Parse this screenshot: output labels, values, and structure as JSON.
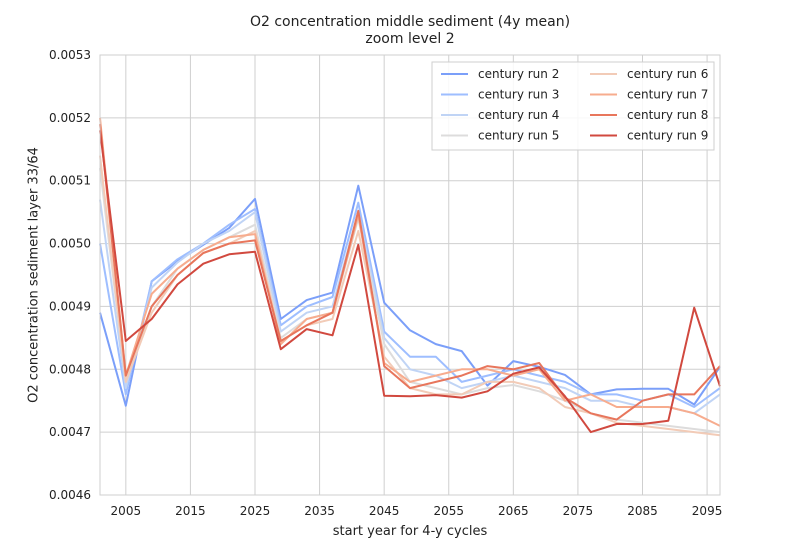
{
  "chart_data": {
    "type": "line",
    "title": "O2 concentration middle sediment (4y mean)",
    "subtitle": "zoom level 2",
    "xlabel": "start year for 4-y cycles",
    "ylabel": "O2 concentration sediment layer 33/64",
    "xlim": [
      2001,
      2097
    ],
    "ylim": [
      0.0046,
      0.0053
    ],
    "xticks": [
      2005,
      2015,
      2025,
      2035,
      2045,
      2055,
      2065,
      2075,
      2085,
      2095
    ],
    "yticks": [
      "0.0046",
      "0.0047",
      "0.0048",
      "0.0049",
      "0.0050",
      "0.0051",
      "0.0052",
      "0.0053"
    ],
    "grid": true,
    "legend_position": "top-right",
    "x": [
      2001,
      2005,
      2009,
      2013,
      2017,
      2021,
      2025,
      2029,
      2033,
      2037,
      2041,
      2045,
      2049,
      2053,
      2057,
      2061,
      2065,
      2069,
      2073,
      2077,
      2081,
      2085,
      2089,
      2093,
      2097
    ],
    "series": [
      {
        "name": "century run 2",
        "color": "#7b9ff9",
        "values": [
          0.00489,
          0.004742,
          0.00494,
          0.004972,
          0.004998,
          0.005025,
          0.005071,
          0.00488,
          0.00491,
          0.004922,
          0.005092,
          0.004906,
          0.004862,
          0.00484,
          0.004829,
          0.004774,
          0.004813,
          0.004804,
          0.004791,
          0.00476,
          0.004768,
          0.004769,
          0.004769,
          0.004744,
          0.004804
        ]
      },
      {
        "name": "century run 3",
        "color": "#9ebeff",
        "values": [
          0.005,
          0.00476,
          0.00494,
          0.004975,
          0.005,
          0.00503,
          0.005055,
          0.00487,
          0.0049,
          0.004915,
          0.005065,
          0.00486,
          0.00482,
          0.00482,
          0.00478,
          0.00479,
          0.0048,
          0.00479,
          0.00478,
          0.00476,
          0.00476,
          0.00475,
          0.00476,
          0.00474,
          0.00477
        ]
      },
      {
        "name": "century run 4",
        "color": "#c0d4f5",
        "values": [
          0.00507,
          0.00477,
          0.00493,
          0.00497,
          0.005,
          0.00502,
          0.00505,
          0.00486,
          0.00489,
          0.0049,
          0.00505,
          0.00485,
          0.0048,
          0.00479,
          0.00477,
          0.00478,
          0.00479,
          0.00478,
          0.00477,
          0.00475,
          0.00475,
          0.00474,
          0.00474,
          0.00473,
          0.00476
        ]
      },
      {
        "name": "century run 5",
        "color": "#dddcdc",
        "values": [
          0.00512,
          0.00478,
          0.0049,
          0.00496,
          0.00499,
          0.00501,
          0.00503,
          0.00485,
          0.00488,
          0.00489,
          0.00504,
          0.00484,
          0.00478,
          0.00477,
          0.00476,
          0.00477,
          0.004775,
          0.004765,
          0.00475,
          0.00473,
          0.00472,
          0.004715,
          0.00471,
          0.004705,
          0.0047
        ]
      },
      {
        "name": "century run 6",
        "color": "#f2cbb7",
        "values": [
          0.00514,
          0.00478,
          0.00489,
          0.00495,
          0.004985,
          0.005,
          0.00502,
          0.004845,
          0.00487,
          0.00488,
          0.00502,
          0.00482,
          0.00477,
          0.00476,
          0.00476,
          0.00478,
          0.00478,
          0.00477,
          0.00474,
          0.00473,
          0.004715,
          0.00471,
          0.004705,
          0.0047,
          0.004695
        ]
      },
      {
        "name": "century run 7",
        "color": "#f7ac8e",
        "values": [
          0.0052,
          0.00479,
          0.00492,
          0.00496,
          0.00499,
          0.00501,
          0.005015,
          0.00484,
          0.00488,
          0.00489,
          0.005045,
          0.00481,
          0.00478,
          0.00479,
          0.0048,
          0.0048,
          0.00479,
          0.0048,
          0.00475,
          0.00476,
          0.00474,
          0.00474,
          0.00474,
          0.00473,
          0.00471
        ]
      },
      {
        "name": "century run 8",
        "color": "#e8765c",
        "values": [
          0.00519,
          0.00479,
          0.0049,
          0.00495,
          0.004985,
          0.005,
          0.005005,
          0.004845,
          0.00487,
          0.00489,
          0.005052,
          0.004805,
          0.00477,
          0.00478,
          0.00479,
          0.004805,
          0.0048,
          0.00481,
          0.004755,
          0.00473,
          0.00472,
          0.00475,
          0.00476,
          0.00476,
          0.004805
        ]
      },
      {
        "name": "century run 9",
        "color": "#d1493f",
        "values": [
          0.00518,
          0.004845,
          0.00488,
          0.004935,
          0.004968,
          0.004983,
          0.004987,
          0.004832,
          0.004864,
          0.004854,
          0.004998,
          0.004758,
          0.004757,
          0.004759,
          0.004755,
          0.004765,
          0.004793,
          0.004803,
          0.004757,
          0.0047,
          0.004713,
          0.004713,
          0.004718,
          0.004898,
          0.004773
        ]
      }
    ]
  }
}
